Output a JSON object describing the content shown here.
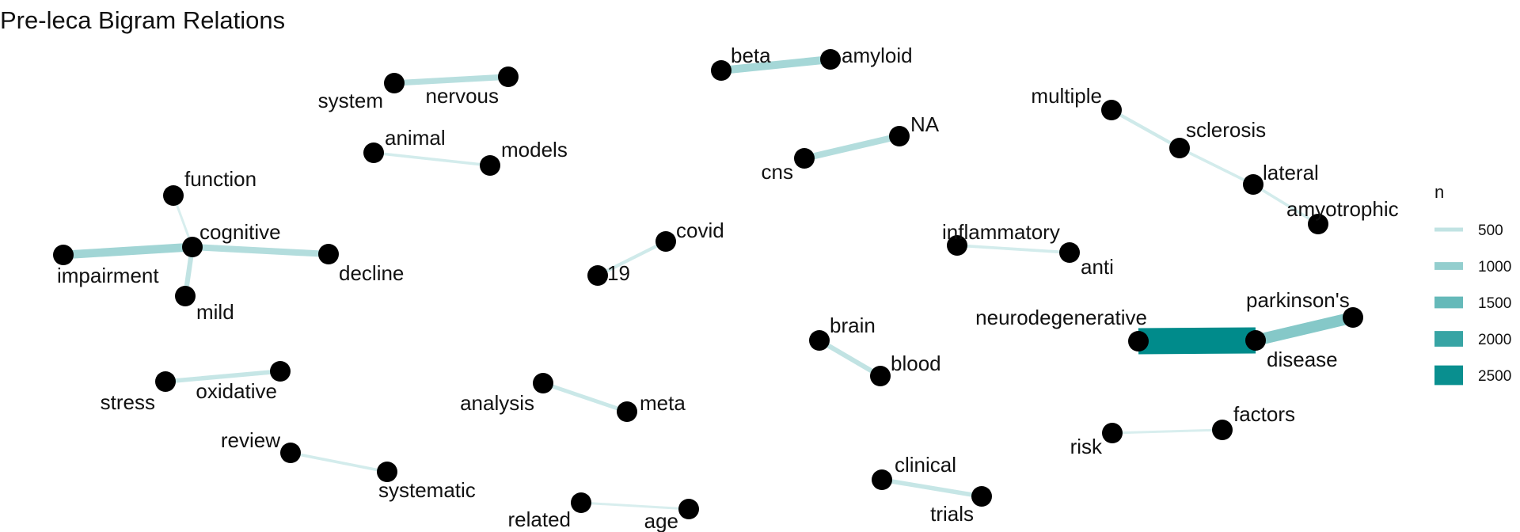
{
  "title": "Pre-leca Bigram Relations",
  "chart_data": {
    "type": "network",
    "nodes": [
      "system",
      "nervous",
      "beta",
      "amyloid",
      "animal",
      "models",
      "cns",
      "NA",
      "multiple",
      "sclerosis",
      "lateral",
      "amyotrophic",
      "function",
      "cognitive",
      "impairment",
      "decline",
      "mild",
      "covid",
      "19",
      "inflammatory",
      "anti",
      "brain",
      "blood",
      "neurodegenerative",
      "disease",
      "parkinson's",
      "stress",
      "oxidative",
      "analysis",
      "meta",
      "review",
      "systematic",
      "risk",
      "factors",
      "clinical",
      "trials",
      "related",
      "age"
    ],
    "edges": [
      {
        "from": "system",
        "to": "nervous",
        "n": 600
      },
      {
        "from": "beta",
        "to": "amyloid",
        "n": 800
      },
      {
        "from": "animal",
        "to": "models",
        "n": 300
      },
      {
        "from": "cns",
        "to": "NA",
        "n": 650
      },
      {
        "from": "multiple",
        "to": "sclerosis",
        "n": 350
      },
      {
        "from": "sclerosis",
        "to": "lateral",
        "n": 300
      },
      {
        "from": "lateral",
        "to": "amyotrophic",
        "n": 300
      },
      {
        "from": "function",
        "to": "cognitive",
        "n": 250
      },
      {
        "from": "impairment",
        "to": "cognitive",
        "n": 850
      },
      {
        "from": "cognitive",
        "to": "decline",
        "n": 650
      },
      {
        "from": "mild",
        "to": "cognitive",
        "n": 500
      },
      {
        "from": "19",
        "to": "covid",
        "n": 350
      },
      {
        "from": "inflammatory",
        "to": "anti",
        "n": 300
      },
      {
        "from": "brain",
        "to": "blood",
        "n": 500
      },
      {
        "from": "neurodegenerative",
        "to": "disease",
        "n": 2600
      },
      {
        "from": "parkinson's",
        "to": "disease",
        "n": 1150
      },
      {
        "from": "stress",
        "to": "oxidative",
        "n": 450
      },
      {
        "from": "analysis",
        "to": "meta",
        "n": 400
      },
      {
        "from": "review",
        "to": "systematic",
        "n": 300
      },
      {
        "from": "risk",
        "to": "factors",
        "n": 250
      },
      {
        "from": "clinical",
        "to": "trials",
        "n": 450
      },
      {
        "from": "related",
        "to": "age",
        "n": 250
      }
    ],
    "legend": {
      "title": "n",
      "entries": [
        {
          "label": "500",
          "n": 500
        },
        {
          "label": "1000",
          "n": 1000
        },
        {
          "label": "1500",
          "n": 1500
        },
        {
          "label": "2000",
          "n": 2000
        },
        {
          "label": "2500",
          "n": 2500
        }
      ]
    },
    "color_low": "#d8eeee",
    "color_high": "#008b8b",
    "node_color": "#000000"
  }
}
